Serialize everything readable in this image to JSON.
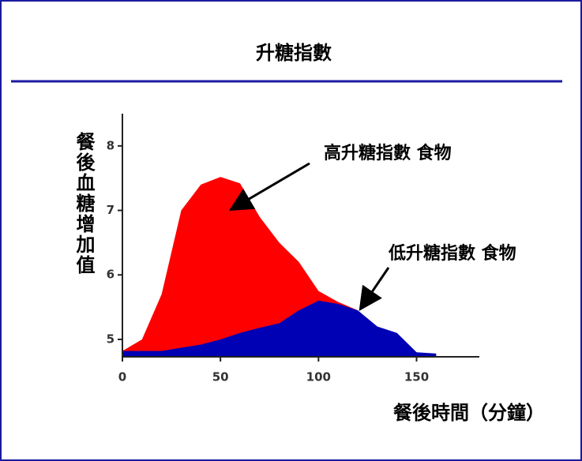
{
  "chart_data": {
    "type": "area",
    "title": "升糖指數",
    "x_label": "餐後時間（分鐘）",
    "y_label": "餐後血糖增加值",
    "x": [
      0,
      10,
      20,
      30,
      40,
      50,
      60,
      70,
      80,
      90,
      100,
      110,
      120,
      130,
      140,
      150,
      160
    ],
    "series": [
      {
        "name": "高升糖指數 食物",
        "color": "#ff0000",
        "values": [
          4.82,
          5.0,
          5.7,
          7.0,
          7.4,
          7.52,
          7.42,
          6.9,
          6.5,
          6.2,
          5.75,
          5.58,
          5.45,
          null,
          null,
          null,
          null
        ]
      },
      {
        "name": "低升糖指數 食物",
        "color": "#0000b4",
        "values": [
          4.82,
          4.82,
          4.82,
          4.87,
          4.92,
          5.0,
          5.1,
          5.18,
          5.25,
          5.45,
          5.6,
          5.55,
          5.45,
          5.2,
          5.1,
          4.8,
          4.78
        ]
      }
    ],
    "xlim": [
      0,
      180
    ],
    "xticks": [
      0,
      50,
      100,
      150
    ],
    "ylim": [
      4.73,
      8.5
    ],
    "yticks": [
      5,
      6,
      7,
      8
    ]
  }
}
